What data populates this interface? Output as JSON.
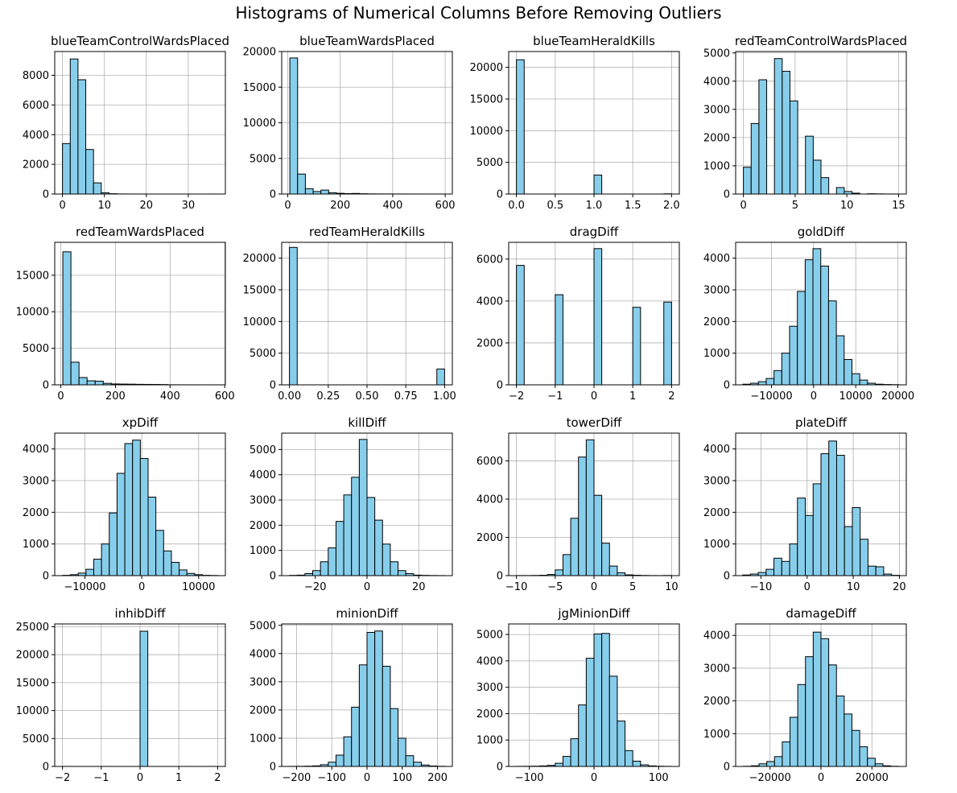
{
  "figure": {
    "title": "Histograms of Numerical Columns Before Removing Outliers"
  },
  "style": {
    "bar_fill": "#87ceeb",
    "bar_edge": "#000000",
    "grid": "#b0b0b0"
  },
  "chart_data": [
    {
      "type": "bar",
      "title": "blueTeamControlWardsPlaced",
      "grid": true,
      "xlim": [
        -1.85,
        38.85
      ],
      "ylim": [
        0,
        9600
      ],
      "xticks": [
        0,
        10,
        20,
        30
      ],
      "yticks": [
        0,
        2000,
        4000,
        6000,
        8000
      ],
      "bins": {
        "start": 0,
        "width": 1.85,
        "counts": [
          3400,
          9100,
          7700,
          3000,
          750,
          80,
          20,
          5,
          2,
          1,
          1,
          0,
          0,
          0,
          0,
          0,
          0,
          0,
          0,
          1
        ]
      }
    },
    {
      "type": "bar",
      "title": "blueTeamWardsPlaced",
      "grid": true,
      "xlim": [
        -23.1,
        627.3
      ],
      "ylim": [
        0,
        20000
      ],
      "xticks": [
        0,
        200,
        400,
        600
      ],
      "yticks": [
        0,
        5000,
        10000,
        15000,
        20000
      ],
      "bins": {
        "start": 7.9,
        "width": 29.6,
        "counts": [
          19100,
          2800,
          750,
          350,
          550,
          180,
          100,
          60,
          80,
          40,
          20,
          15,
          10,
          8,
          5,
          5,
          3,
          2,
          2,
          2
        ]
      }
    },
    {
      "type": "bar",
      "title": "blueTeamHeraldKills",
      "grid": true,
      "xlim": [
        -0.1,
        2.1
      ],
      "ylim": [
        0,
        22500
      ],
      "xticks": [
        0.0,
        0.5,
        1.0,
        1.5,
        2.0
      ],
      "yticks": [
        0,
        5000,
        10000,
        15000,
        20000
      ],
      "bins": {
        "start": 0,
        "width": 0.1,
        "counts": [
          21200,
          0,
          0,
          0,
          0,
          0,
          0,
          0,
          0,
          0,
          3000,
          0,
          0,
          0,
          0,
          0,
          0,
          0,
          0,
          30
        ]
      }
    },
    {
      "type": "bar",
      "title": "redTeamControlWardsPlaced",
      "grid": true,
      "xlim": [
        -0.75,
        15.75
      ],
      "ylim": [
        0,
        5050
      ],
      "xticks": [
        0,
        5,
        10,
        15
      ],
      "yticks": [
        0,
        1000,
        2000,
        3000,
        4000,
        5000
      ],
      "bins": {
        "start": 0,
        "width": 0.75,
        "counts": [
          950,
          2500,
          4050,
          0,
          4800,
          4350,
          3300,
          0,
          2050,
          1200,
          580,
          0,
          230,
          90,
          30,
          0,
          10,
          5,
          2,
          1
        ]
      }
    },
    {
      "type": "bar",
      "title": "redTeamWardsPlaced",
      "grid": true,
      "xlim": [
        -22.2,
        602.2
      ],
      "ylim": [
        0,
        19500
      ],
      "xticks": [
        0,
        200,
        400,
        600
      ],
      "yticks": [
        0,
        5000,
        10000,
        15000
      ],
      "bins": {
        "start": 7.5,
        "width": 29.6,
        "counts": [
          18200,
          3100,
          1000,
          550,
          500,
          200,
          120,
          100,
          90,
          70,
          60,
          50,
          40,
          10,
          5,
          3,
          2,
          2,
          1,
          1
        ]
      }
    },
    {
      "type": "bar",
      "title": "redTeamHeraldKills",
      "grid": true,
      "xlim": [
        -0.05,
        1.05
      ],
      "ylim": [
        0,
        22500
      ],
      "xticks": [
        0.0,
        0.25,
        0.5,
        0.75,
        1.0
      ],
      "yticks": [
        0,
        5000,
        10000,
        15000,
        20000
      ],
      "bins": {
        "start": 0,
        "width": 0.05,
        "counts": [
          21700,
          0,
          0,
          0,
          0,
          0,
          0,
          0,
          0,
          0,
          0,
          0,
          0,
          0,
          0,
          0,
          0,
          0,
          0,
          2500
        ]
      }
    },
    {
      "type": "bar",
      "title": "dragDiff",
      "grid": true,
      "xlim": [
        -2.2,
        2.2
      ],
      "ylim": [
        0,
        6800
      ],
      "xticks": [
        -2,
        -1,
        0,
        1,
        2
      ],
      "yticks": [
        0,
        2000,
        4000,
        6000
      ],
      "bins": {
        "start": -2,
        "width": 0.2,
        "counts": [
          5700,
          0,
          0,
          0,
          0,
          4300,
          0,
          0,
          0,
          0,
          6500,
          0,
          0,
          0,
          0,
          3700,
          0,
          0,
          0,
          3950
        ]
      }
    },
    {
      "type": "bar",
      "title": "goldDiff",
      "grid": true,
      "xlim": [
        -18500,
        22000
      ],
      "ylim": [
        0,
        4500
      ],
      "xticks": [
        -10000,
        0,
        10000,
        20000
      ],
      "yticks": [
        0,
        1000,
        2000,
        3000,
        4000
      ],
      "bins": {
        "start": -16800,
        "width": 1850,
        "counts": [
          20,
          50,
          100,
          200,
          450,
          1000,
          1850,
          2950,
          3950,
          4300,
          3750,
          2650,
          1550,
          800,
          350,
          150,
          50,
          20,
          10,
          5
        ]
      }
    },
    {
      "type": "bar",
      "title": "xpDiff",
      "grid": true,
      "xlim": [
        -15300,
        14700
      ],
      "ylim": [
        0,
        4500
      ],
      "xticks": [
        -10000,
        0,
        10000
      ],
      "yticks": [
        0,
        1000,
        2000,
        3000,
        4000
      ],
      "bins": {
        "start": -13900,
        "width": 1365,
        "counts": [
          10,
          30,
          80,
          200,
          520,
          1000,
          1980,
          3230,
          4170,
          4280,
          3700,
          2480,
          1430,
          780,
          420,
          180,
          70,
          30,
          10,
          5
        ]
      }
    },
    {
      "type": "bar",
      "title": "killDiff",
      "grid": true,
      "xlim": [
        -33,
        33
      ],
      "ylim": [
        0,
        5650
      ],
      "xticks": [
        -20,
        0,
        20
      ],
      "yticks": [
        0,
        1000,
        2000,
        3000,
        4000,
        5000
      ],
      "bins": {
        "start": -30,
        "width": 3,
        "counts": [
          10,
          20,
          80,
          200,
          550,
          1100,
          2150,
          3200,
          3900,
          5400,
          3100,
          2200,
          1250,
          550,
          200,
          80,
          20,
          10,
          5,
          3
        ]
      }
    },
    {
      "type": "bar",
      "title": "towerDiff",
      "grid": true,
      "xlim": [
        -11,
        11
      ],
      "ylim": [
        0,
        7450
      ],
      "xticks": [
        -10,
        -5,
        0,
        5,
        10
      ],
      "yticks": [
        0,
        2000,
        4000,
        6000
      ],
      "bins": {
        "start": -10,
        "width": 1,
        "counts": [
          5,
          5,
          10,
          20,
          60,
          300,
          1100,
          3000,
          6200,
          7100,
          4200,
          1700,
          500,
          150,
          40,
          20,
          10,
          5,
          3,
          8
        ]
      }
    },
    {
      "type": "bar",
      "title": "plateDiff",
      "grid": true,
      "xlim": [
        -15.5,
        21.5
      ],
      "ylim": [
        0,
        4500
      ],
      "xticks": [
        -10,
        0,
        10,
        20
      ],
      "yticks": [
        0,
        1000,
        2000,
        3000,
        4000
      ],
      "bins": {
        "start": -14,
        "width": 1.7,
        "counts": [
          20,
          50,
          100,
          200,
          550,
          450,
          1000,
          2450,
          1900,
          2900,
          3850,
          4250,
          3800,
          1550,
          2150,
          1150,
          300,
          280,
          50,
          10
        ]
      }
    },
    {
      "type": "bar",
      "title": "inhibDiff",
      "grid": true,
      "xlim": [
        -2.2,
        2.2
      ],
      "ylim": [
        0,
        25500
      ],
      "xticks": [
        -2,
        -1,
        0,
        1,
        2
      ],
      "yticks": [
        0,
        5000,
        10000,
        15000,
        20000,
        25000
      ],
      "bins": {
        "start": -2,
        "width": 0.2,
        "counts": [
          5,
          1,
          1,
          1,
          1,
          3,
          1,
          1,
          1,
          1,
          24200,
          1,
          1,
          1,
          1,
          3,
          1,
          1,
          1,
          5
        ]
      }
    },
    {
      "type": "bar",
      "title": "minionDiff",
      "grid": true,
      "xlim": [
        -242,
        242
      ],
      "ylim": [
        0,
        5050
      ],
      "xticks": [
        -200,
        -100,
        0,
        100,
        200
      ],
      "yticks": [
        0,
        1000,
        2000,
        3000,
        4000,
        5000
      ],
      "bins": {
        "start": -220,
        "width": 22,
        "counts": [
          3,
          5,
          10,
          20,
          60,
          150,
          400,
          1050,
          2100,
          3600,
          4750,
          4800,
          3550,
          2050,
          1000,
          380,
          150,
          50,
          15,
          5
        ]
      }
    },
    {
      "type": "bar",
      "title": "jgMinionDiff",
      "grid": true,
      "xlim": [
        -132,
        132
      ],
      "ylim": [
        0,
        5400
      ],
      "xticks": [
        -100,
        0,
        100
      ],
      "yticks": [
        0,
        1000,
        2000,
        3000,
        4000,
        5000
      ],
      "bins": {
        "start": -120,
        "width": 12,
        "counts": [
          3,
          5,
          10,
          20,
          40,
          120,
          380,
          1050,
          2330,
          4100,
          5020,
          5040,
          3420,
          1720,
          600,
          200,
          60,
          20,
          8,
          3
        ]
      }
    },
    {
      "type": "bar",
      "title": "damageDiff",
      "grid": true,
      "xlim": [
        -33500,
        33500
      ],
      "ylim": [
        0,
        4350
      ],
      "xticks": [
        -20000,
        0,
        20000
      ],
      "yticks": [
        0,
        1000,
        2000,
        3000,
        4000
      ],
      "bins": {
        "start": -30400,
        "width": 3040,
        "counts": [
          5,
          20,
          80,
          150,
          300,
          750,
          1500,
          2500,
          3350,
          4100,
          3900,
          3100,
          2150,
          1600,
          1100,
          600,
          250,
          80,
          20,
          5
        ]
      }
    }
  ]
}
